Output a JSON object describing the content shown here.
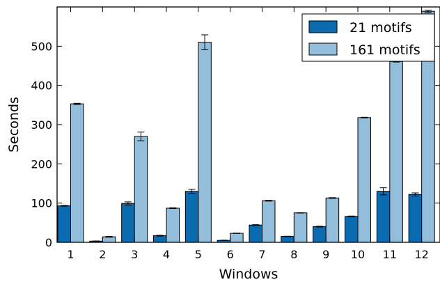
{
  "chart_data": {
    "type": "bar",
    "xlabel": "Windows",
    "ylabel": "Seconds",
    "ylim": [
      0,
      600
    ],
    "yticks": [
      0,
      100,
      200,
      300,
      400,
      500
    ],
    "categories": [
      "1",
      "2",
      "3",
      "4",
      "5",
      "6",
      "7",
      "8",
      "9",
      "10",
      "11",
      "12"
    ],
    "legend_position": "top-right",
    "grid": false,
    "series": [
      {
        "name": "21 motifs",
        "color": "#0a6bb0",
        "values": [
          93,
          3,
          99,
          17,
          130,
          5,
          44,
          15,
          40,
          66,
          130,
          122
        ],
        "errors": [
          1,
          0.5,
          4,
          1,
          5,
          0.5,
          1,
          0.5,
          1,
          1,
          9,
          4
        ]
      },
      {
        "name": "161 motifs",
        "color": "#92bedc",
        "values": [
          353,
          14,
          270,
          87,
          510,
          23,
          106,
          75,
          113,
          318,
          461,
          589
        ],
        "errors": [
          1.5,
          1,
          11,
          1,
          19,
          0.5,
          1,
          0.5,
          1,
          1,
          1.5,
          3
        ]
      }
    ]
  }
}
